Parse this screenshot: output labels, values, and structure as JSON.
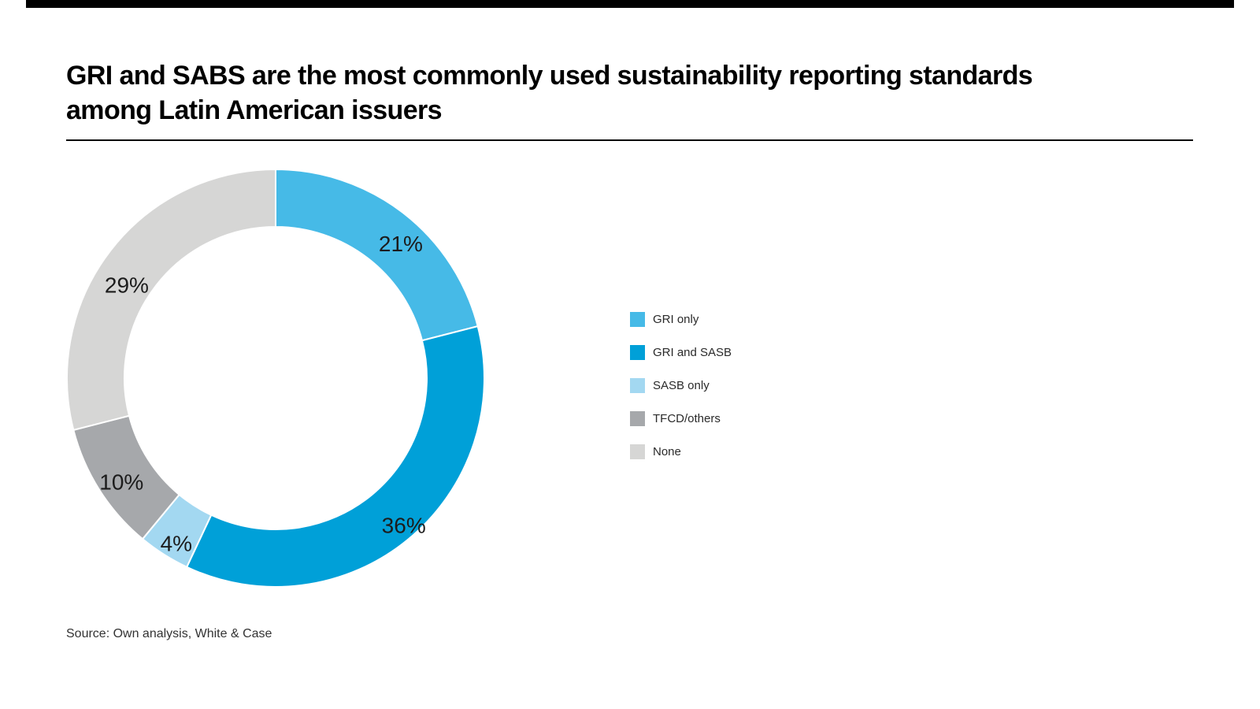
{
  "header": {
    "title_line1": "GRI and SABS are the most commonly used sustainability reporting standards",
    "title_line2": "among Latin American issuers"
  },
  "footer": {
    "source": "Source: Own analysis, White & Case"
  },
  "colors": {
    "background": "#ffffff",
    "accent_bar": "#000000",
    "divider": "#000000",
    "label_text": "#1c1c1c"
  },
  "chart_data": {
    "type": "pie",
    "subtype": "donut",
    "title": "GRI and SABS are the most commonly used sustainability reporting standards among Latin American issuers",
    "legend_position": "right",
    "value_suffix": "%",
    "start_angle_deg": 0,
    "direction": "clockwise",
    "segments": [
      {
        "label": "GRI only",
        "value": 21,
        "color": "#46bae7",
        "label_angle": 43,
        "label_r": 233
      },
      {
        "label": "GRI and SASB",
        "value": 36,
        "color": "#00a0d8",
        "label_angle": 139,
        "label_r": 248
      },
      {
        "label": "SASB only",
        "value": 4,
        "color": "#a3d8f1",
        "label_angle": 211,
        "label_r": 245
      },
      {
        "label": "TFCD/others",
        "value": 10,
        "color": "#a6a8ab",
        "label_angle": 236,
        "label_r": 236
      },
      {
        "label": "None",
        "value": 29,
        "color": "#d6d6d5",
        "label_angle": 302,
        "label_r": 223
      }
    ]
  }
}
